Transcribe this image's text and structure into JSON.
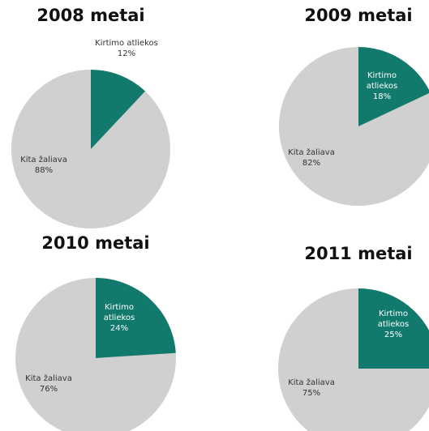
{
  "colors": {
    "teal": "#127a6d",
    "grey": "#d0d0d0",
    "background": "#ffffff"
  },
  "chart_data": [
    {
      "type": "pie",
      "title": "2008 metai",
      "slices": [
        {
          "label": "Kirtimo atliekos",
          "value": 12,
          "value_label": "12%",
          "color": "#127a6d"
        },
        {
          "label": "Kita žaliava",
          "value": 88,
          "value_label": "88%",
          "color": "#d0d0d0"
        }
      ]
    },
    {
      "type": "pie",
      "title": "2009 metai",
      "slices": [
        {
          "label": "Kirtimo atliekos",
          "value": 18,
          "value_label": "18%",
          "color": "#127a6d"
        },
        {
          "label": "Kita žaliava",
          "value": 82,
          "value_label": "82%",
          "color": "#d0d0d0"
        }
      ]
    },
    {
      "type": "pie",
      "title": "2010 metai",
      "slices": [
        {
          "label": "Kirtimo atliekos",
          "value": 24,
          "value_label": "24%",
          "color": "#127a6d"
        },
        {
          "label": "Kita žaliava",
          "value": 76,
          "value_label": "76%",
          "color": "#d0d0d0"
        }
      ]
    },
    {
      "type": "pie",
      "title": "2011 metai",
      "slices": [
        {
          "label": "Kirtimo atliekos",
          "value": 25,
          "value_label": "25%",
          "color": "#127a6d"
        },
        {
          "label": "Kita žaliava",
          "value": 75,
          "value_label": "75%",
          "color": "#d0d0d0"
        }
      ]
    }
  ]
}
